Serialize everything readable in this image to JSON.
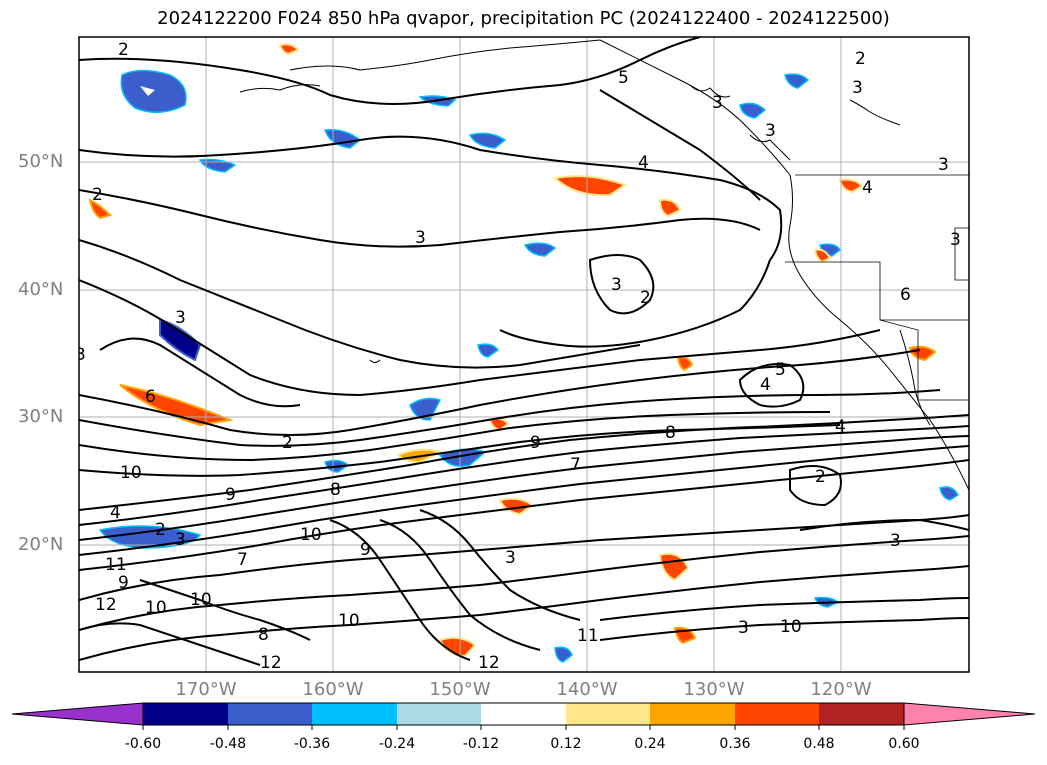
{
  "title": "2024122200 F024 850 hPa qvapor, precipitation PC (2024122400 - 2024122500)",
  "lat_labels": [
    "50°N",
    "40°N",
    "30°N",
    "20°N"
  ],
  "lon_labels": [
    "170°W",
    "160°W",
    "150°W",
    "140°W",
    "130°W",
    "120°W"
  ],
  "colorbar": {
    "ticks": [
      "-0.60",
      "-0.48",
      "-0.36",
      "-0.24",
      "-0.12",
      "0.12",
      "0.24",
      "0.36",
      "0.48",
      "0.60"
    ],
    "colors": [
      "#9932cc",
      "#00008b",
      "#3a5fcd",
      "#00bfff",
      "#add8e6",
      "#ffffff",
      "#ffe68a",
      "#ffa500",
      "#ff4500",
      "#b22222",
      "#ff82ab"
    ]
  },
  "contour_labels": [
    "2",
    "5",
    "3",
    "3",
    "2",
    "3",
    "4",
    "3",
    "3",
    "2",
    "4",
    "3",
    "3",
    "3",
    "2",
    "3",
    "6",
    "5",
    "4",
    "8",
    "9",
    "6",
    "7",
    "4",
    "2",
    "2",
    "10",
    "9",
    "8",
    "4",
    "2",
    "3",
    "10",
    "9",
    "7",
    "3",
    "9",
    "11",
    "12",
    "12",
    "10",
    "3",
    "11",
    "10",
    "10",
    "8",
    "10",
    "12",
    "3"
  ],
  "map_colors": {
    "contour": "#000000",
    "grid": "#b0b0b0",
    "coast": "#000000"
  }
}
